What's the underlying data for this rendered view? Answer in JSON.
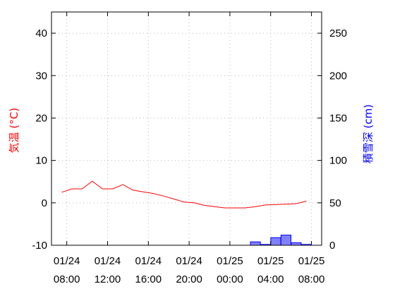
{
  "chart_data": {
    "type": "line",
    "x_tick_labels": [
      {
        "date": "01/24",
        "time": "08:00"
      },
      {
        "date": "01/24",
        "time": "12:00"
      },
      {
        "date": "01/24",
        "time": "16:00"
      },
      {
        "date": "01/24",
        "time": "20:00"
      },
      {
        "date": "01/25",
        "time": "00:00"
      },
      {
        "date": "01/25",
        "time": "04:00"
      },
      {
        "date": "01/25",
        "time": "08:00"
      }
    ],
    "x_tick_hours": [
      0,
      4,
      8,
      12,
      16,
      20,
      24
    ],
    "xlim_hours": [
      -1.5,
      25
    ],
    "left_axis": {
      "label": "気温 (°C)",
      "color": "#ff0000",
      "ylim": [
        -10,
        45
      ],
      "ticks": [
        -10,
        0,
        10,
        20,
        30,
        40
      ]
    },
    "right_axis": {
      "label": "積雪深 (cm)",
      "color": "#0000ff",
      "ylim": [
        0,
        275
      ],
      "ticks": [
        0,
        50,
        100,
        150,
        200,
        250
      ]
    },
    "series": [
      {
        "type": "line",
        "axis": "left",
        "color": "#ff0000",
        "x_hours": [
          -0.5,
          0.5,
          1.5,
          2.5,
          3.5,
          4.5,
          5.5,
          6.5,
          7.5,
          8.5,
          9.5,
          10.5,
          11.5,
          12.5,
          13.5,
          14.5,
          15.5,
          16.5,
          17.5,
          18.5,
          19.5,
          20.5,
          21.5,
          22.5,
          23.5
        ],
        "values": [
          2.5,
          3.3,
          3.3,
          5.1,
          3.3,
          3.3,
          4.3,
          3.0,
          2.6,
          2.2,
          1.6,
          0.9,
          0.2,
          0.0,
          -0.6,
          -0.9,
          -1.2,
          -1.2,
          -1.2,
          -0.9,
          -0.5,
          -0.4,
          -0.3,
          -0.2,
          0.4
        ]
      },
      {
        "type": "bar",
        "axis": "right",
        "color": "#0000ff",
        "fill": "#8080ff",
        "x_hours": [
          18.5,
          19.5,
          20.5,
          21.5,
          22.5,
          23.5
        ],
        "values": [
          4,
          1,
          9,
          12,
          3,
          1
        ]
      }
    ],
    "grid": true
  }
}
